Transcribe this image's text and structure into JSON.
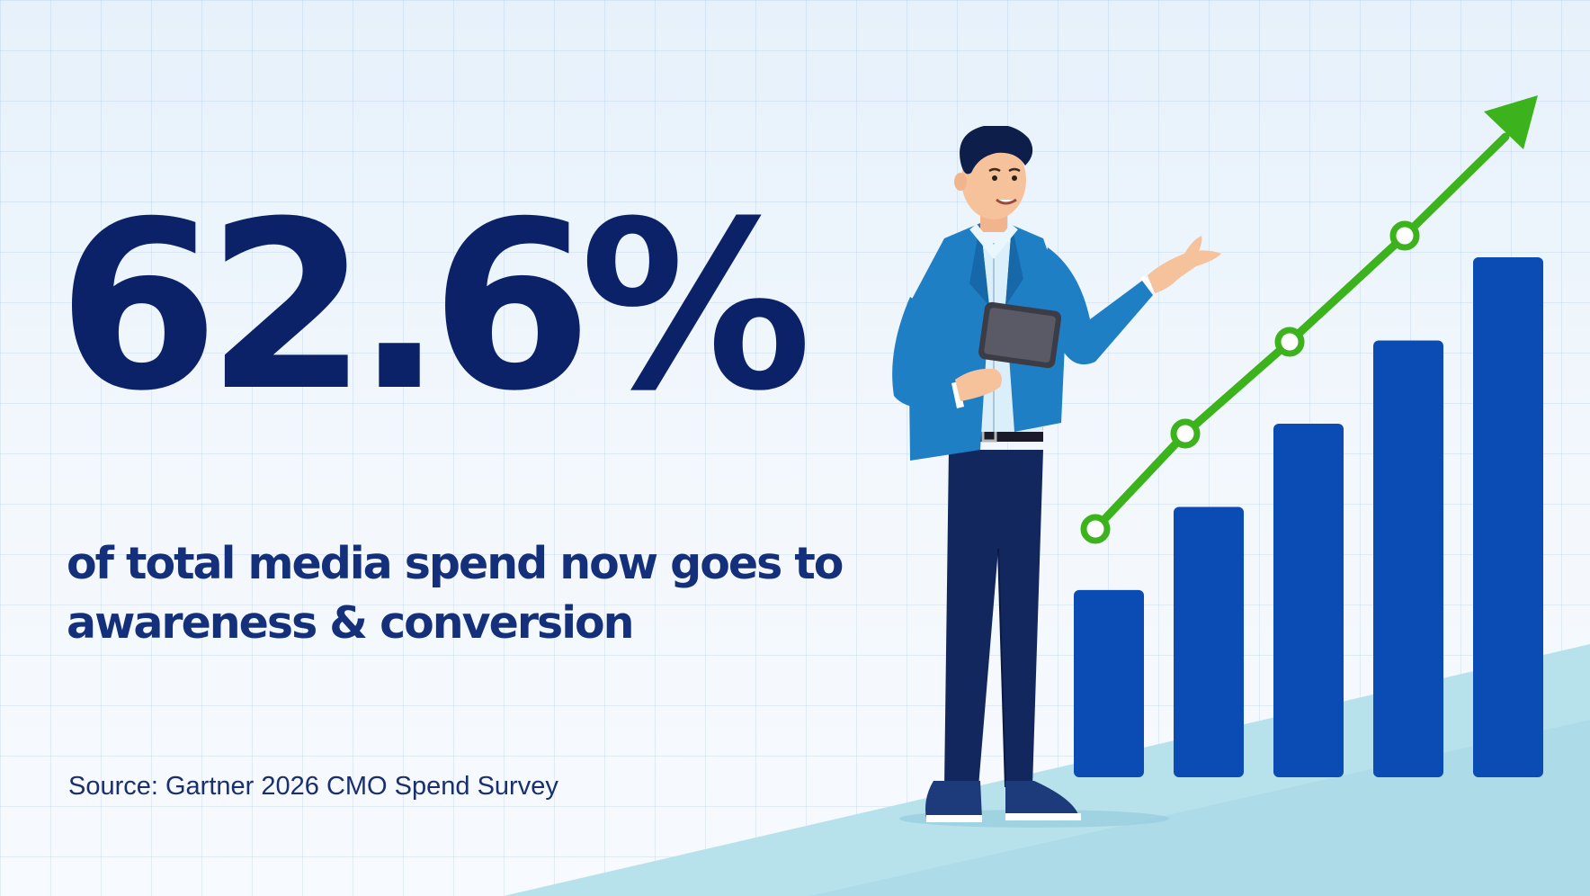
{
  "headline": {
    "stat": "62.6%",
    "description_lines": [
      "of total media spend now goes to",
      "awareness & conversion"
    ]
  },
  "source": "Source: Gartner 2026 CMO Spend Survey",
  "colors": {
    "navy_text": "#0b2268",
    "bar_blue": "#0a4bb4",
    "trend_green": "#3cb31c",
    "floor_teal": "#aee0ea",
    "jacket_blue": "#1f7fc4"
  },
  "illustration": {
    "figure": "presenter-with-tablet",
    "chart_icon": "growth-bar-chart-with-trend-arrow",
    "relative_bar_heights": [
      0.36,
      0.52,
      0.68,
      0.84,
      1.0
    ]
  }
}
